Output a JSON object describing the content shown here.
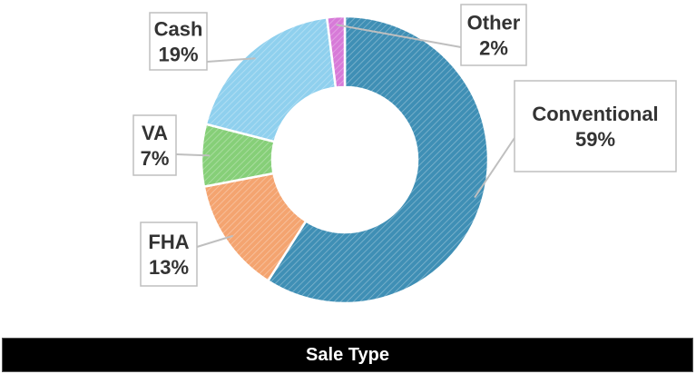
{
  "chart_data": {
    "type": "pie",
    "variant": "donut",
    "title": "Sale Type",
    "slices": [
      {
        "label": "Conventional",
        "percent": 59,
        "value_label": "59%",
        "color": "#3f8fb5"
      },
      {
        "label": "FHA",
        "percent": 13,
        "value_label": "13%",
        "color": "#f4a470"
      },
      {
        "label": "VA",
        "percent": 7,
        "value_label": "7%",
        "color": "#86cf78"
      },
      {
        "label": "Cash",
        "percent": 19,
        "value_label": "19%",
        "color": "#8fd0ee"
      },
      {
        "label": "Other",
        "percent": 2,
        "value_label": "2%",
        "color": "#d77ad8"
      }
    ]
  }
}
